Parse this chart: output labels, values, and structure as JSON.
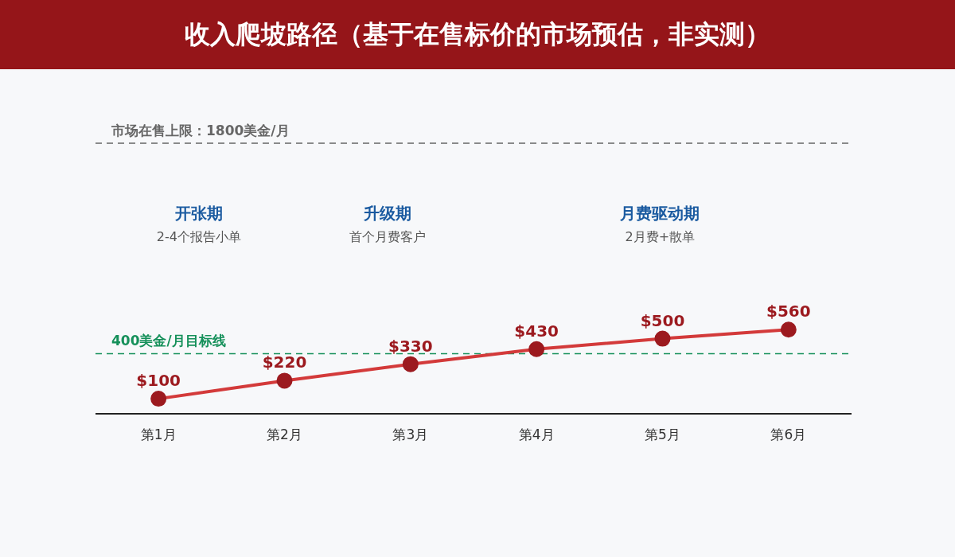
{
  "chart_data": {
    "type": "line",
    "title": "收入爬坡路径（基于在售标价的市场预估，非实测）",
    "categories": [
      "第1月",
      "第2月",
      "第3月",
      "第4月",
      "第5月",
      "第6月"
    ],
    "series": [
      {
        "color": "#d33a3a",
        "values": [
          100,
          220,
          330,
          430,
          500,
          560
        ],
        "value_labels": [
          "$100",
          "$220",
          "$330",
          "$430",
          "$500",
          "$560"
        ]
      }
    ],
    "tick_labels": "x",
    "marker": "circle",
    "line_style": "solid",
    "grid": false,
    "legend": false,
    "ref_lines": [
      {
        "axis": "y",
        "value": 400,
        "label": "400美金/月目标线",
        "color": "#15905a",
        "line_style": "dashed"
      },
      {
        "axis": "y",
        "value": 1800,
        "label": "市场在售上限：1800美金/月",
        "color": "#666666",
        "line_style": "dashed"
      }
    ],
    "annotations": [
      "开张期",
      "2-4个报告小单",
      "升级期",
      "首个月费客户",
      "月费驱动期",
      "2月费+散单"
    ]
  }
}
